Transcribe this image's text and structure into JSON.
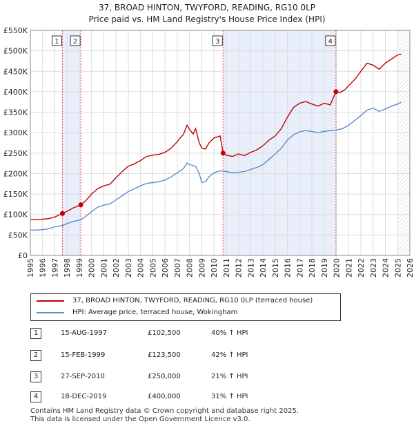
{
  "title_line1": "37, BROAD HINTON, TWYFORD, READING, RG10 0LP",
  "title_line2": "Price paid vs. HM Land Registry's House Price Index (HPI)",
  "colors": {
    "property": "#c00000",
    "hpi": "#5b8ccc",
    "shade": "#e8eefa",
    "vline": "#e05050"
  },
  "legend": {
    "property_label": "37, BROAD HINTON, TWYFORD, READING, RG10 0LP (terraced house)",
    "hpi_label": "HPI: Average price, terraced house, Wokingham"
  },
  "sales": [
    {
      "num": "1",
      "date": "15-AUG-1997",
      "price": "£102,500",
      "hpi": "40% ↑ HPI"
    },
    {
      "num": "2",
      "date": "15-FEB-1999",
      "price": "£123,500",
      "hpi": "42% ↑ HPI"
    },
    {
      "num": "3",
      "date": "27-SEP-2010",
      "price": "£250,000",
      "hpi": "21% ↑ HPI"
    },
    {
      "num": "4",
      "date": "18-DEC-2019",
      "price": "£400,000",
      "hpi": "31% ↑ HPI"
    }
  ],
  "footer_line1": "Contains HM Land Registry data © Crown copyright and database right 2025.",
  "footer_line2": "This data is licensed under the Open Government Licence v3.0.",
  "chart_data": {
    "type": "line",
    "xlim": [
      1995,
      2026
    ],
    "ylim": [
      0,
      550000
    ],
    "x_ticks": [
      1995,
      1996,
      1997,
      1998,
      1999,
      2000,
      2001,
      2002,
      2003,
      2004,
      2005,
      2006,
      2007,
      2008,
      2009,
      2010,
      2011,
      2012,
      2013,
      2014,
      2015,
      2016,
      2017,
      2018,
      2019,
      2020,
      2021,
      2022,
      2023,
      2024,
      2025,
      2026
    ],
    "y_ticks": [
      0,
      50000,
      100000,
      150000,
      200000,
      250000,
      300000,
      350000,
      400000,
      450000,
      500000,
      550000
    ],
    "y_tick_labels": [
      "£0",
      "£50K",
      "£100K",
      "£150K",
      "£200K",
      "£250K",
      "£300K",
      "£350K",
      "£400K",
      "£450K",
      "£500K",
      "£550K"
    ],
    "shaded_ranges": [
      [
        1997.62,
        1999.12
      ],
      [
        2010.74,
        2019.96
      ]
    ],
    "hatch_from": 2025.0,
    "series": [
      {
        "name": "37, BROAD HINTON, TWYFORD, READING, RG10 0LP (terraced house)",
        "points": [
          [
            1995,
            88000
          ],
          [
            1995.5,
            87000
          ],
          [
            1996,
            88500
          ],
          [
            1996.5,
            90000
          ],
          [
            1997,
            94000
          ],
          [
            1997.62,
            102500
          ],
          [
            1998,
            108000
          ],
          [
            1998.5,
            116000
          ],
          [
            1999.12,
            123500
          ],
          [
            1999.5,
            133000
          ],
          [
            2000,
            150000
          ],
          [
            2000.5,
            163000
          ],
          [
            2001,
            170000
          ],
          [
            2001.5,
            174000
          ],
          [
            2002,
            190000
          ],
          [
            2002.5,
            205000
          ],
          [
            2003,
            218000
          ],
          [
            2003.5,
            224000
          ],
          [
            2004,
            232000
          ],
          [
            2004.5,
            242000
          ],
          [
            2005,
            245000
          ],
          [
            2005.5,
            247000
          ],
          [
            2006,
            252000
          ],
          [
            2006.5,
            262000
          ],
          [
            2007,
            278000
          ],
          [
            2007.5,
            296000
          ],
          [
            2007.8,
            318000
          ],
          [
            2008,
            308000
          ],
          [
            2008.3,
            297000
          ],
          [
            2008.5,
            310000
          ],
          [
            2008.8,
            275000
          ],
          [
            2009,
            262000
          ],
          [
            2009.3,
            260000
          ],
          [
            2009.6,
            275000
          ],
          [
            2010,
            287000
          ],
          [
            2010.5,
            292000
          ],
          [
            2010.74,
            250000
          ],
          [
            2011,
            245000
          ],
          [
            2011.5,
            242000
          ],
          [
            2012,
            248000
          ],
          [
            2012.5,
            244000
          ],
          [
            2013,
            252000
          ],
          [
            2013.5,
            258000
          ],
          [
            2014,
            268000
          ],
          [
            2014.5,
            282000
          ],
          [
            2015,
            292000
          ],
          [
            2015.5,
            310000
          ],
          [
            2016,
            338000
          ],
          [
            2016.5,
            362000
          ],
          [
            2017,
            372000
          ],
          [
            2017.5,
            376000
          ],
          [
            2018,
            370000
          ],
          [
            2018.5,
            365000
          ],
          [
            2019,
            372000
          ],
          [
            2019.5,
            368000
          ],
          [
            2019.96,
            400000
          ],
          [
            2020.3,
            398000
          ],
          [
            2020.7,
            405000
          ],
          [
            2021,
            415000
          ],
          [
            2021.5,
            430000
          ],
          [
            2022,
            450000
          ],
          [
            2022.5,
            470000
          ],
          [
            2023,
            465000
          ],
          [
            2023.5,
            455000
          ],
          [
            2024,
            470000
          ],
          [
            2024.5,
            480000
          ],
          [
            2025,
            490000
          ],
          [
            2025.3,
            492000
          ]
        ]
      },
      {
        "name": "HPI: Average price, terraced house, Wokingham",
        "points": [
          [
            1995,
            62000
          ],
          [
            1995.5,
            62000
          ],
          [
            1996,
            63000
          ],
          [
            1996.5,
            65000
          ],
          [
            1997,
            70000
          ],
          [
            1997.62,
            73000
          ],
          [
            1998,
            78000
          ],
          [
            1998.5,
            83000
          ],
          [
            1999.12,
            87000
          ],
          [
            1999.5,
            95000
          ],
          [
            2000,
            107000
          ],
          [
            2000.5,
            118000
          ],
          [
            2001,
            123000
          ],
          [
            2001.5,
            126000
          ],
          [
            2002,
            136000
          ],
          [
            2002.5,
            146000
          ],
          [
            2003,
            156000
          ],
          [
            2003.5,
            163000
          ],
          [
            2004,
            170000
          ],
          [
            2004.5,
            176000
          ],
          [
            2005,
            178000
          ],
          [
            2005.5,
            180000
          ],
          [
            2006,
            184000
          ],
          [
            2006.5,
            192000
          ],
          [
            2007,
            202000
          ],
          [
            2007.5,
            212000
          ],
          [
            2007.8,
            226000
          ],
          [
            2008,
            222000
          ],
          [
            2008.5,
            218000
          ],
          [
            2008.8,
            200000
          ],
          [
            2009,
            178000
          ],
          [
            2009.3,
            180000
          ],
          [
            2009.6,
            192000
          ],
          [
            2010,
            202000
          ],
          [
            2010.5,
            207000
          ],
          [
            2010.74,
            206000
          ],
          [
            2011,
            205000
          ],
          [
            2011.5,
            202000
          ],
          [
            2012,
            203000
          ],
          [
            2012.5,
            205000
          ],
          [
            2013,
            210000
          ],
          [
            2013.5,
            215000
          ],
          [
            2014,
            222000
          ],
          [
            2014.5,
            235000
          ],
          [
            2015,
            248000
          ],
          [
            2015.5,
            262000
          ],
          [
            2016,
            282000
          ],
          [
            2016.5,
            295000
          ],
          [
            2017,
            302000
          ],
          [
            2017.5,
            305000
          ],
          [
            2018,
            303000
          ],
          [
            2018.5,
            300000
          ],
          [
            2019,
            303000
          ],
          [
            2019.5,
            305000
          ],
          [
            2019.96,
            306000
          ],
          [
            2020.5,
            310000
          ],
          [
            2021,
            318000
          ],
          [
            2021.5,
            330000
          ],
          [
            2022,
            342000
          ],
          [
            2022.5,
            355000
          ],
          [
            2023,
            360000
          ],
          [
            2023.5,
            352000
          ],
          [
            2024,
            358000
          ],
          [
            2024.5,
            365000
          ],
          [
            2025,
            370000
          ],
          [
            2025.3,
            375000
          ]
        ]
      }
    ],
    "sale_markers": [
      {
        "label": "1",
        "x": 1997.62,
        "y": 102500
      },
      {
        "label": "2",
        "x": 1999.12,
        "y": 123500
      },
      {
        "label": "3",
        "x": 2010.74,
        "y": 250000
      },
      {
        "label": "4",
        "x": 2019.96,
        "y": 400000
      }
    ]
  }
}
